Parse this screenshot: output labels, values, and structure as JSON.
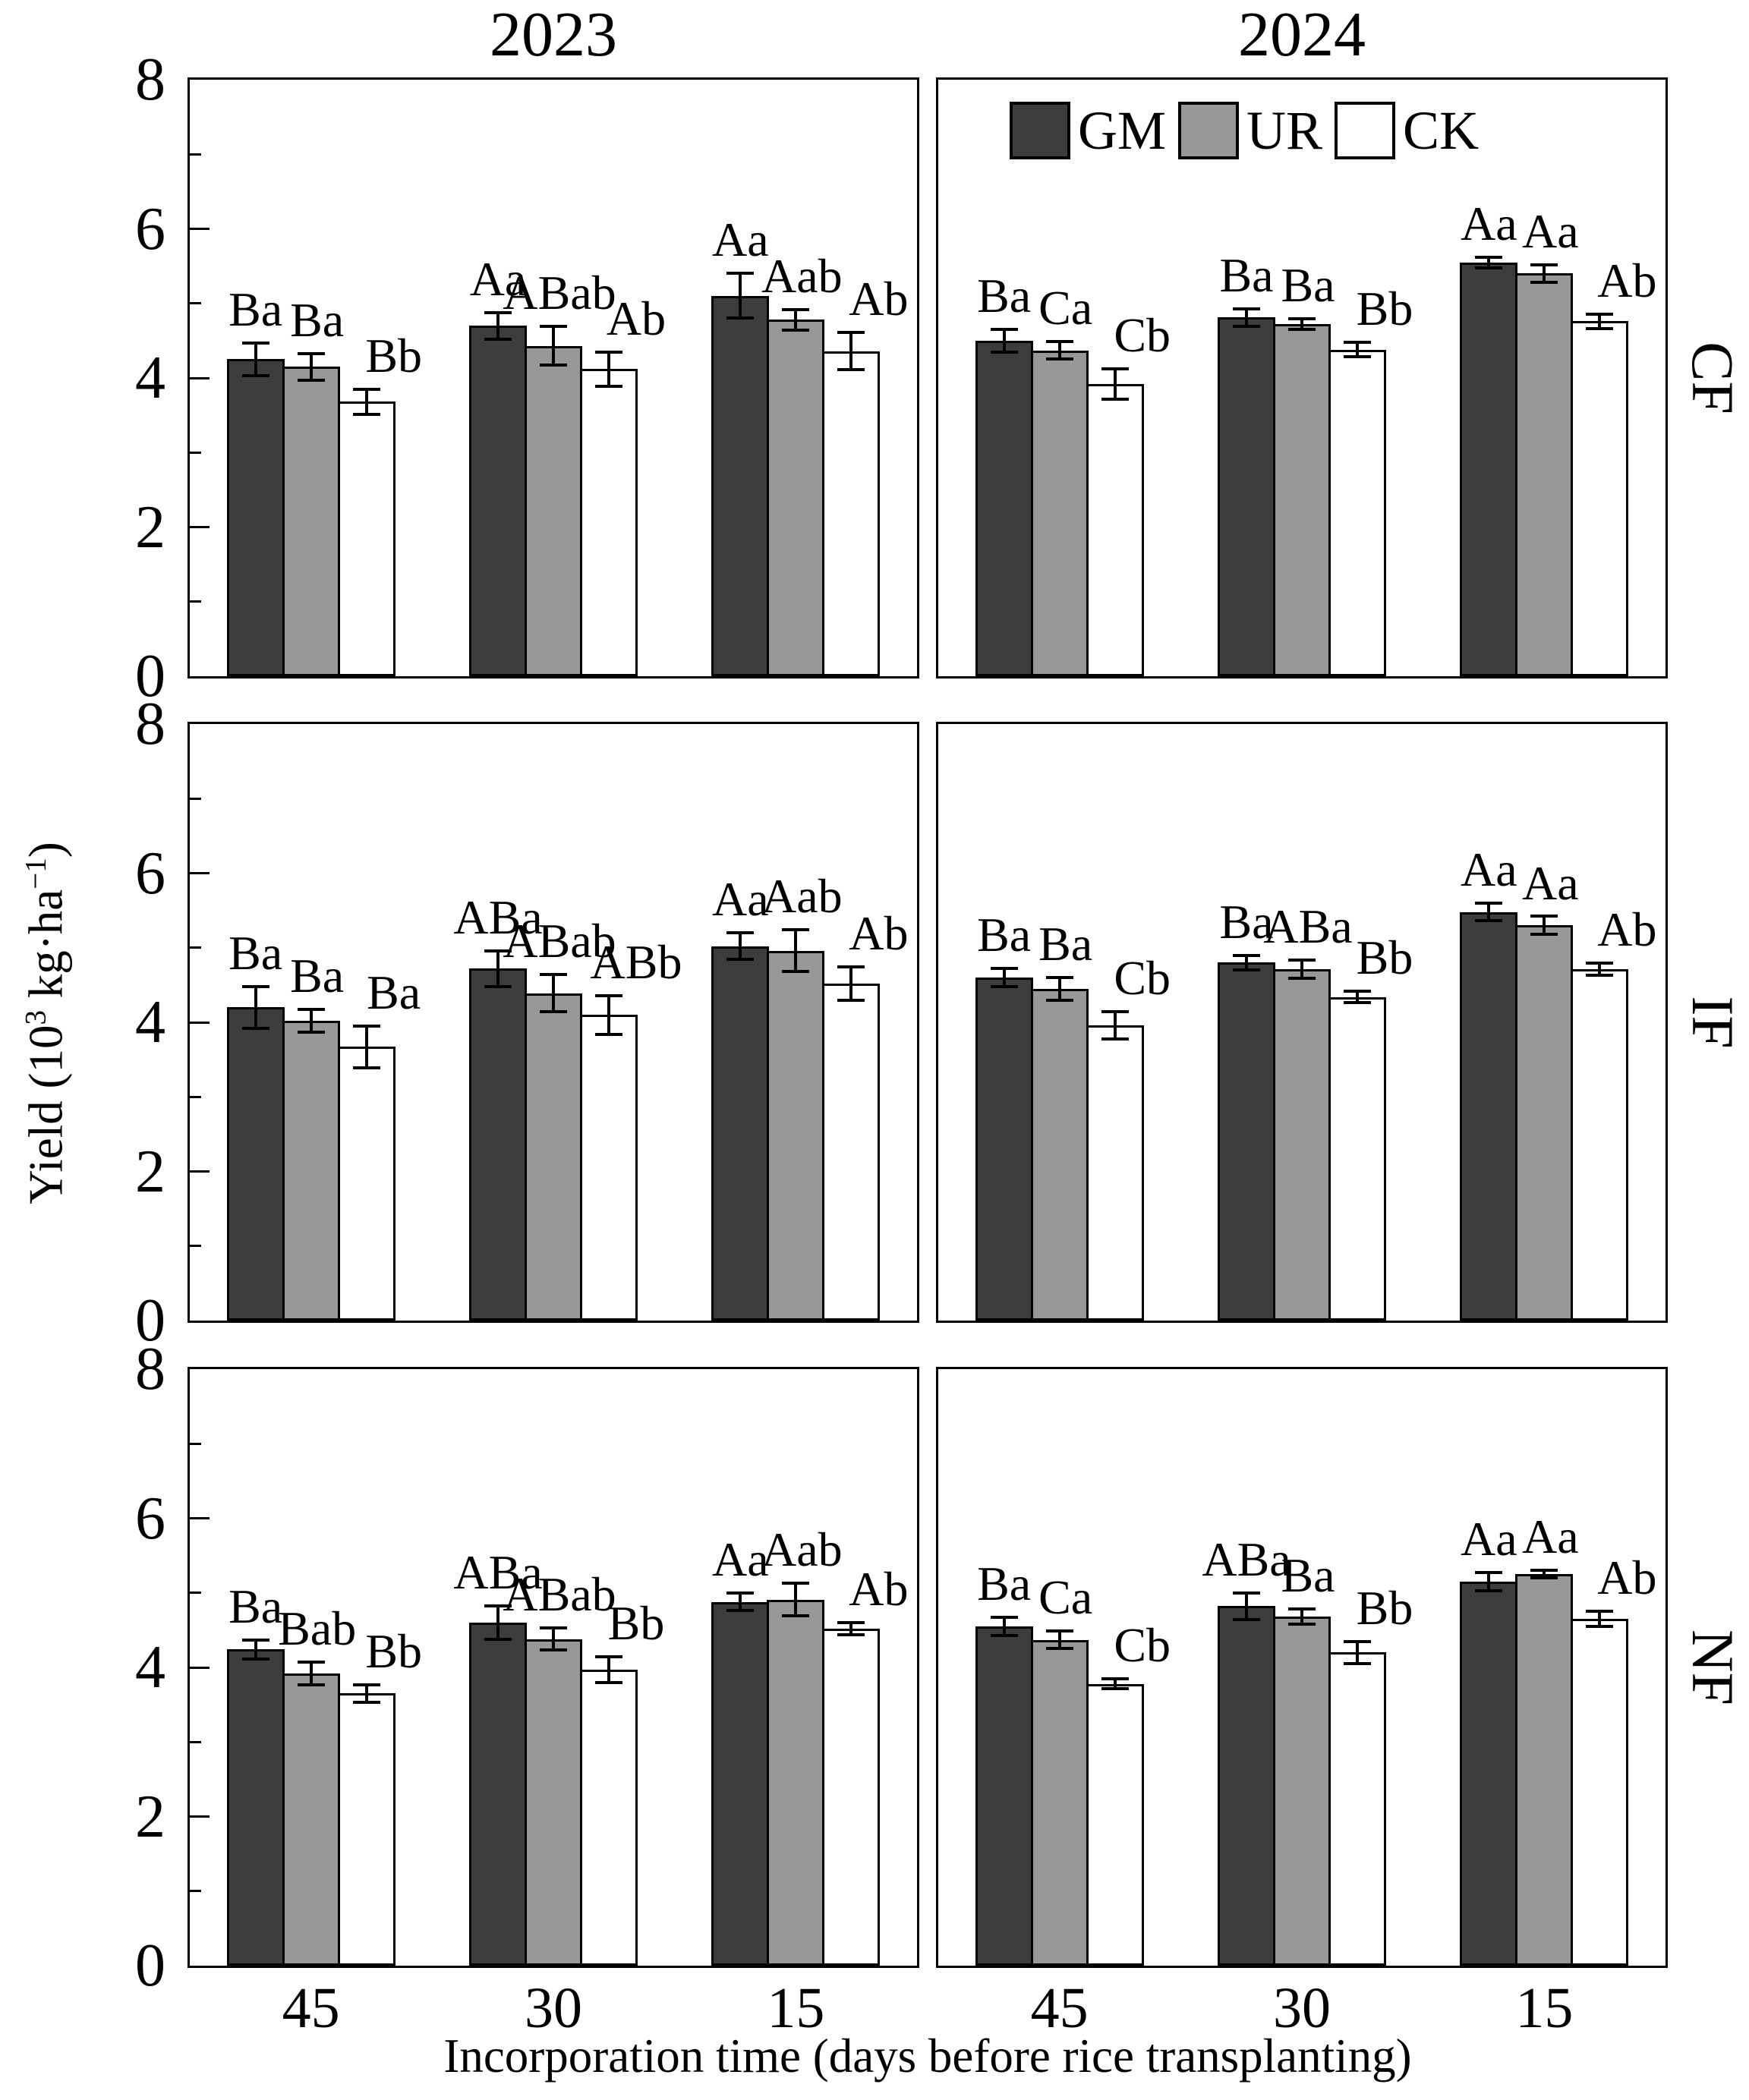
{
  "figure": {
    "column_titles": [
      "2023",
      "2024"
    ],
    "row_labels": [
      "CF",
      "IF",
      "NF"
    ],
    "x_axis": {
      "title": "Incorporation time (days before rice transplanting)",
      "tick_labels": [
        "45",
        "30",
        "15"
      ]
    },
    "y_axis": {
      "title_parts": {
        "pre": "Yield (10",
        "sup1": "3",
        "mid": " kg·ha",
        "sup2": "−1",
        "post": ")"
      },
      "tick_labels": [
        "0",
        "2",
        "4",
        "6",
        "8"
      ]
    },
    "legend": [
      {
        "name": "GM",
        "color": "#3d3d3d"
      },
      {
        "name": "UR",
        "color": "#989898"
      },
      {
        "name": "CK",
        "color": "#ffffff"
      }
    ]
  },
  "chart_data": {
    "type": "bar",
    "categories": [
      "45",
      "30",
      "15"
    ],
    "xlabel": "Incorporation time (days before rice transplanting)",
    "ylabel": "Yield (10^3 kg·ha^-1)",
    "ylim": [
      0,
      8
    ],
    "yticks": [
      0,
      2,
      4,
      6,
      8
    ],
    "grid": false,
    "legend_position": "inside top of 2024 CF panel",
    "error_bars": true,
    "series_colors": {
      "GM": "#3d3d3d",
      "UR": "#989898",
      "CK": "#ffffff"
    },
    "panels": [
      {
        "year": "2023",
        "treatment": "CF",
        "row": 0,
        "col": 0,
        "series": [
          {
            "name": "GM",
            "values": [
              4.25,
              4.7,
              5.1
            ],
            "errors": [
              0.22,
              0.18,
              0.3
            ],
            "sig_labels": [
              "Ba",
              "Aa",
              "Aa"
            ]
          },
          {
            "name": "UR",
            "values": [
              4.15,
              4.43,
              4.78
            ],
            "errors": [
              0.18,
              0.26,
              0.14
            ],
            "sig_labels": [
              "Ba",
              "ABab",
              "Aab"
            ]
          },
          {
            "name": "CK",
            "values": [
              3.68,
              4.12,
              4.36
            ],
            "errors": [
              0.17,
              0.23,
              0.25
            ],
            "sig_labels": [
              "Bb",
              "Ab",
              "Ab"
            ]
          }
        ]
      },
      {
        "year": "2024",
        "treatment": "CF",
        "row": 0,
        "col": 1,
        "series": [
          {
            "name": "GM",
            "values": [
              4.5,
              4.81,
              5.55
            ],
            "errors": [
              0.15,
              0.12,
              0.07
            ],
            "sig_labels": [
              "Ba",
              "Ba",
              "Aa"
            ]
          },
          {
            "name": "UR",
            "values": [
              4.37,
              4.72,
              5.4
            ],
            "errors": [
              0.12,
              0.07,
              0.12
            ],
            "sig_labels": [
              "Ca",
              "Ba",
              "Aa"
            ]
          },
          {
            "name": "CK",
            "values": [
              3.92,
              4.38,
              4.76
            ],
            "errors": [
              0.2,
              0.1,
              0.1
            ],
            "sig_labels": [
              "Cb",
              "Bb",
              "Ab"
            ]
          }
        ]
      },
      {
        "year": "2023",
        "treatment": "IF",
        "row": 1,
        "col": 0,
        "series": [
          {
            "name": "GM",
            "values": [
              4.2,
              4.72,
              5.02
            ],
            "errors": [
              0.28,
              0.24,
              0.18
            ],
            "sig_labels": [
              "Ba",
              "ABa",
              "Aa"
            ]
          },
          {
            "name": "UR",
            "values": [
              4.02,
              4.39,
              4.96
            ],
            "errors": [
              0.15,
              0.25,
              0.28
            ],
            "sig_labels": [
              "Ba",
              "ABab",
              "Aab"
            ]
          },
          {
            "name": "CK",
            "values": [
              3.67,
              4.1,
              4.52
            ],
            "errors": [
              0.28,
              0.26,
              0.22
            ],
            "sig_labels": [
              "Ba",
              "ABb",
              "Ab"
            ]
          }
        ]
      },
      {
        "year": "2024",
        "treatment": "IF",
        "row": 1,
        "col": 1,
        "series": [
          {
            "name": "GM",
            "values": [
              4.6,
              4.8,
              5.48
            ],
            "errors": [
              0.12,
              0.1,
              0.12
            ],
            "sig_labels": [
              "Ba",
              "Ba",
              "Aa"
            ]
          },
          {
            "name": "UR",
            "values": [
              4.45,
              4.71,
              5.3
            ],
            "errors": [
              0.15,
              0.12,
              0.12
            ],
            "sig_labels": [
              "Ba",
              "ABa",
              "Aa"
            ]
          },
          {
            "name": "CK",
            "values": [
              3.96,
              4.34,
              4.71
            ],
            "errors": [
              0.18,
              0.08,
              0.08
            ],
            "sig_labels": [
              "Cb",
              "Bb",
              "Ab"
            ]
          }
        ]
      },
      {
        "year": "2023",
        "treatment": "NF",
        "row": 2,
        "col": 0,
        "series": [
          {
            "name": "GM",
            "values": [
              4.24,
              4.6,
              4.88
            ],
            "errors": [
              0.13,
              0.22,
              0.12
            ],
            "sig_labels": [
              "Ba",
              "ABa",
              "Aa"
            ]
          },
          {
            "name": "UR",
            "values": [
              3.92,
              4.38,
              4.91
            ],
            "errors": [
              0.15,
              0.15,
              0.22
            ],
            "sig_labels": [
              "Bab",
              "ABab",
              "Aab"
            ]
          },
          {
            "name": "CK",
            "values": [
              3.65,
              3.97,
              4.52
            ],
            "errors": [
              0.12,
              0.17,
              0.08
            ],
            "sig_labels": [
              "Bb",
              "Bb",
              "Ab"
            ]
          }
        ]
      },
      {
        "year": "2024",
        "treatment": "NF",
        "row": 2,
        "col": 1,
        "series": [
          {
            "name": "GM",
            "values": [
              4.55,
              4.82,
              5.15
            ],
            "errors": [
              0.12,
              0.18,
              0.12
            ],
            "sig_labels": [
              "Ba",
              "ABa",
              "Aa"
            ]
          },
          {
            "name": "UR",
            "values": [
              4.37,
              4.68,
              5.25
            ],
            "errors": [
              0.12,
              0.1,
              0.05
            ],
            "sig_labels": [
              "Ca",
              "Ba",
              "Aa"
            ]
          },
          {
            "name": "CK",
            "values": [
              3.78,
              4.2,
              4.65
            ],
            "errors": [
              0.07,
              0.15,
              0.1
            ],
            "sig_labels": [
              "Cb",
              "Bb",
              "Ab"
            ]
          }
        ]
      }
    ]
  }
}
